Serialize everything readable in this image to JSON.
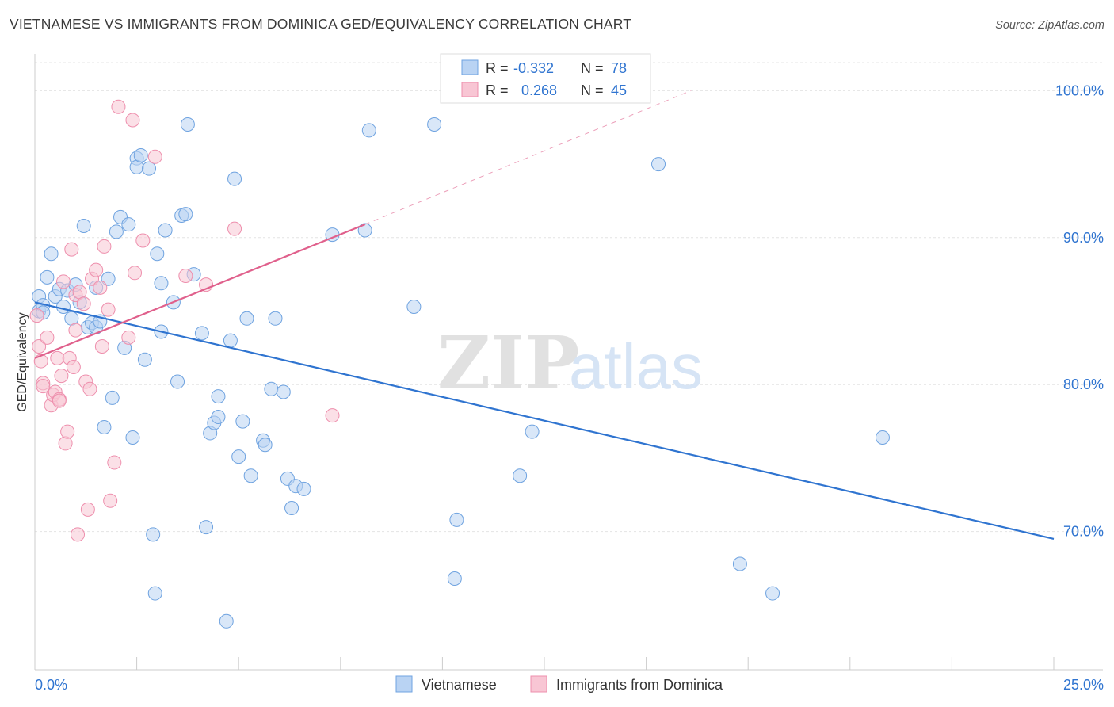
{
  "header": {
    "title": "VIETNAMESE VS IMMIGRANTS FROM DOMINICA GED/EQUIVALENCY CORRELATION CHART",
    "source": "Source: ZipAtlas.com"
  },
  "watermark": {
    "zip": "ZIP",
    "atlas": "atlas"
  },
  "stats_legend": [
    {
      "r_label": "R =",
      "r_value": "-0.332",
      "n_label": "N =",
      "n_value": "78",
      "color": "#a8c8f0"
    },
    {
      "r_label": "R =",
      "r_value": "0.268",
      "n_label": "N =",
      "n_value": "45",
      "color": "#f5b8c8"
    }
  ],
  "chart_data": {
    "type": "scatter",
    "xlabel": "",
    "ylabel": "GED/Equivalency",
    "x_tick_labels": [
      "0.0%",
      "25.0%"
    ],
    "y_tick_labels": [
      "100.0%",
      "90.0%",
      "80.0%",
      "70.0%"
    ],
    "xlim": [
      0,
      25
    ],
    "ylim": [
      60.6,
      102.5
    ],
    "y_ticks": [
      100,
      90,
      80,
      70
    ],
    "grid": true,
    "legend_position": "bottom",
    "series": [
      {
        "name": "Vietnamese",
        "color": "#6fa3e0",
        "fill": "#b9d3f3",
        "line_color": "#2f74d0",
        "trend": {
          "x": [
            0,
            25
          ],
          "y": [
            85.6,
            69.5
          ]
        },
        "points": [
          [
            0.1,
            85.0
          ],
          [
            0.1,
            86.0
          ],
          [
            0.2,
            85.4
          ],
          [
            0.2,
            84.9
          ],
          [
            0.3,
            87.3
          ],
          [
            0.4,
            88.9
          ],
          [
            0.5,
            86.0
          ],
          [
            0.6,
            86.5
          ],
          [
            0.7,
            85.3
          ],
          [
            0.8,
            86.4
          ],
          [
            0.9,
            84.5
          ],
          [
            1.0,
            86.8
          ],
          [
            1.1,
            85.6
          ],
          [
            1.2,
            90.8
          ],
          [
            1.3,
            83.9
          ],
          [
            1.4,
            84.2
          ],
          [
            1.5,
            83.9
          ],
          [
            1.5,
            86.6
          ],
          [
            1.6,
            84.3
          ],
          [
            1.7,
            77.1
          ],
          [
            1.8,
            87.2
          ],
          [
            1.9,
            79.1
          ],
          [
            2.0,
            90.4
          ],
          [
            2.1,
            91.4
          ],
          [
            2.2,
            82.5
          ],
          [
            2.3,
            90.9
          ],
          [
            2.4,
            76.4
          ],
          [
            2.5,
            95.4
          ],
          [
            2.5,
            94.8
          ],
          [
            2.6,
            95.6
          ],
          [
            2.7,
            81.7
          ],
          [
            2.8,
            94.7
          ],
          [
            2.9,
            69.8
          ],
          [
            2.95,
            65.8
          ],
          [
            3.0,
            88.9
          ],
          [
            3.1,
            83.6
          ],
          [
            3.1,
            86.9
          ],
          [
            3.2,
            90.5
          ],
          [
            3.4,
            85.6
          ],
          [
            3.5,
            80.2
          ],
          [
            3.6,
            91.5
          ],
          [
            3.7,
            91.6
          ],
          [
            3.75,
            97.7
          ],
          [
            3.9,
            87.5
          ],
          [
            4.1,
            83.5
          ],
          [
            4.2,
            70.3
          ],
          [
            4.3,
            76.7
          ],
          [
            4.4,
            77.4
          ],
          [
            4.5,
            77.8
          ],
          [
            4.5,
            79.2
          ],
          [
            4.7,
            63.9
          ],
          [
            4.8,
            83.0
          ],
          [
            4.9,
            94.0
          ],
          [
            5.0,
            75.1
          ],
          [
            5.1,
            77.5
          ],
          [
            5.2,
            84.5
          ],
          [
            5.3,
            73.8
          ],
          [
            5.6,
            76.2
          ],
          [
            5.65,
            75.9
          ],
          [
            5.8,
            79.7
          ],
          [
            5.9,
            84.5
          ],
          [
            6.1,
            79.5
          ],
          [
            6.2,
            73.6
          ],
          [
            6.3,
            71.6
          ],
          [
            6.4,
            73.1
          ],
          [
            6.6,
            72.9
          ],
          [
            7.3,
            90.2
          ],
          [
            8.1,
            90.5
          ],
          [
            8.2,
            97.3
          ],
          [
            9.3,
            85.3
          ],
          [
            9.8,
            97.7
          ],
          [
            10.3,
            66.8
          ],
          [
            10.35,
            70.8
          ],
          [
            11.9,
            73.8
          ],
          [
            12.2,
            76.8
          ],
          [
            15.3,
            95.0
          ],
          [
            17.3,
            67.8
          ],
          [
            18.1,
            65.8
          ],
          [
            20.8,
            76.4
          ]
        ]
      },
      {
        "name": "Immigrants from Dominica",
        "color": "#ee8fad",
        "fill": "#f8c6d4",
        "line_color": "#e0608c",
        "trend": {
          "x": [
            0,
            8.1
          ],
          "y": [
            81.8,
            90.9
          ]
        },
        "trend_dashed": {
          "x": [
            8.1,
            16.1
          ],
          "y": [
            90.9,
            100.0
          ]
        },
        "points": [
          [
            0.05,
            84.7
          ],
          [
            0.1,
            82.6
          ],
          [
            0.15,
            81.6
          ],
          [
            0.2,
            80.1
          ],
          [
            0.2,
            79.9
          ],
          [
            0.3,
            83.2
          ],
          [
            0.4,
            78.6
          ],
          [
            0.45,
            79.3
          ],
          [
            0.5,
            79.5
          ],
          [
            0.55,
            81.8
          ],
          [
            0.6,
            79.0
          ],
          [
            0.65,
            80.6
          ],
          [
            0.7,
            87.0
          ],
          [
            0.75,
            76.0
          ],
          [
            0.8,
            76.8
          ],
          [
            0.85,
            81.8
          ],
          [
            0.9,
            89.2
          ],
          [
            0.95,
            81.2
          ],
          [
            1.0,
            86.1
          ],
          [
            1.05,
            69.8
          ],
          [
            1.1,
            86.3
          ],
          [
            1.2,
            85.5
          ],
          [
            1.25,
            80.2
          ],
          [
            1.3,
            71.5
          ],
          [
            1.35,
            79.7
          ],
          [
            1.4,
            87.2
          ],
          [
            1.5,
            87.8
          ],
          [
            1.6,
            86.6
          ],
          [
            1.65,
            82.6
          ],
          [
            1.7,
            89.4
          ],
          [
            1.8,
            85.1
          ],
          [
            1.85,
            72.1
          ],
          [
            1.95,
            74.7
          ],
          [
            2.05,
            98.9
          ],
          [
            2.3,
            83.2
          ],
          [
            2.4,
            98.0
          ],
          [
            2.45,
            87.6
          ],
          [
            2.65,
            89.8
          ],
          [
            2.95,
            95.5
          ],
          [
            3.7,
            87.4
          ],
          [
            4.2,
            86.8
          ],
          [
            4.9,
            90.6
          ],
          [
            7.3,
            77.9
          ],
          [
            1.0,
            83.7
          ],
          [
            0.6,
            78.9
          ]
        ]
      }
    ]
  }
}
